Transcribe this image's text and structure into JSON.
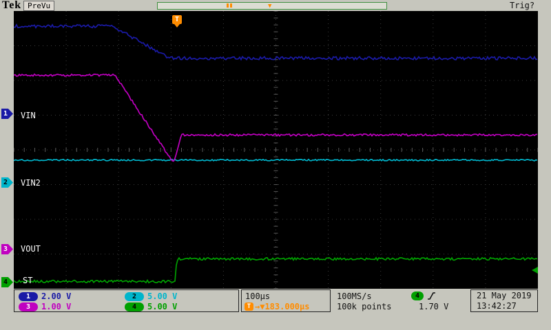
{
  "header": {
    "brand": "Tek",
    "mode": "PreVu",
    "trig_status": "Trig?",
    "trig_flag": "T"
  },
  "icons": {
    "trigger_position_marker": "▼"
  },
  "channels": [
    {
      "num": "1",
      "label": "VIN",
      "scale": "2.00 V",
      "color": "#1a1aa6"
    },
    {
      "num": "2",
      "label": "VIN2",
      "scale": "5.00 V",
      "color": "#00b5cb"
    },
    {
      "num": "3",
      "label": "VOUT",
      "scale": "1.00 V",
      "color": "#c000c0"
    },
    {
      "num": "4",
      "label": "ST",
      "scale": "5.00 V",
      "color": "#00a000"
    }
  ],
  "readouts": {
    "timebase": "100µs",
    "trigger_badge": "T",
    "trigger_delay": "→▼183.000µs",
    "sample_rate": "100MS/s",
    "record_length": "100k points",
    "trig_source": "4",
    "trig_level": "1.70 V"
  },
  "datetime": {
    "date": "21 May 2019",
    "time": "13:42:27"
  },
  "colors": {
    "ch1": "#1a1aa6",
    "ch2": "#00b5cb",
    "ch3": "#c000c0",
    "ch4": "#00a000",
    "trigger": "#ff8c00",
    "grid": "#3c3c3c",
    "screen_bg": "#000000",
    "chrome_bg": "#c6c6bd"
  },
  "chart_data": {
    "type": "line",
    "title": "Oscilloscope capture: VIN ramp-down with VOUT dip/recovery and ST assertion",
    "x_unit": "µs",
    "x_range": [
      0,
      1000
    ],
    "time_per_div": "100µs",
    "divisions": {
      "x": 10,
      "y": 8
    },
    "legend_position": "none",
    "grid": true,
    "series": [
      {
        "name": "CH2 VIN2",
        "color": "#00b5cb",
        "volts_per_div": 5,
        "zero_div": 4.93,
        "noise_v": 0.1,
        "points": [
          [
            0,
            3.18
          ],
          [
            1000,
            3.18
          ]
        ]
      },
      {
        "name": "CH3 VOUT",
        "color": "#c000c0",
        "volts_per_div": 1,
        "zero_div": 6.85,
        "noise_v": 0.03,
        "points": [
          [
            0,
            5.0
          ],
          [
            193,
            5.0
          ],
          [
            298,
            2.62
          ],
          [
            306,
            2.52
          ],
          [
            320,
            3.28
          ],
          [
            1000,
            3.28
          ]
        ]
      },
      {
        "name": "CH1 VIN",
        "color": "#1a1aa6",
        "volts_per_div": 2,
        "zero_div": 2.95,
        "noise_v": 0.09,
        "points": [
          [
            0,
            5.02
          ],
          [
            188,
            5.02
          ],
          [
            298,
            3.18
          ],
          [
            1000,
            3.18
          ]
        ]
      },
      {
        "name": "CH4 ST",
        "color": "#00a000",
        "volts_per_div": 5,
        "zero_div": 7.8,
        "noise_v": 0.18,
        "points": [
          [
            0,
            0.05
          ],
          [
            308,
            0.05
          ],
          [
            311,
            3.3
          ],
          [
            1000,
            3.3
          ]
        ]
      }
    ]
  }
}
